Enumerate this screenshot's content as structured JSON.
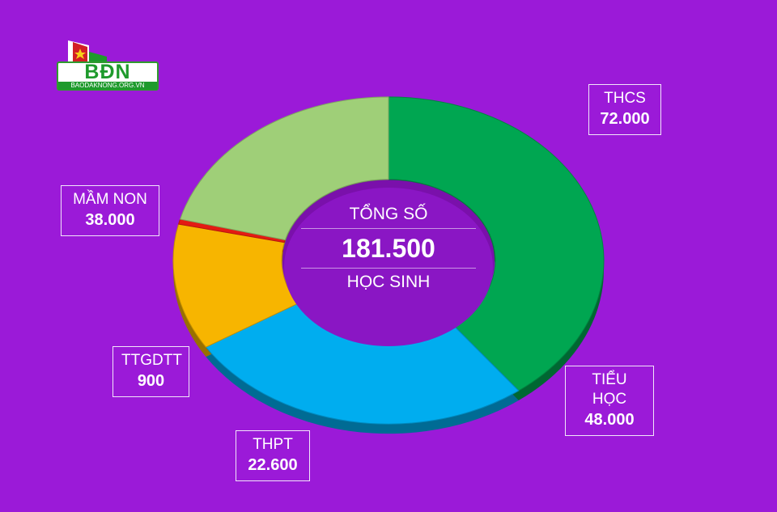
{
  "logo": {
    "text": "BĐN",
    "url": "BAODAKNONG.ORG.VN",
    "colors": {
      "green": "#1e9a2c",
      "red": "#d21f26"
    }
  },
  "center": {
    "title": "TỔNG SỐ",
    "total": "181.500",
    "subtitle": "HỌC SINH"
  },
  "background_color": "#9b1ad8",
  "chart_data": {
    "type": "pie",
    "style": "donut",
    "total": 181500,
    "slices": [
      {
        "name": "THCS",
        "value": 72000,
        "display": "72.000",
        "color": "#00a651"
      },
      {
        "name": "TIỂU HỌC",
        "value": 48000,
        "display": "48.000",
        "color": "#00adef"
      },
      {
        "name": "THPT",
        "value": 22600,
        "display": "22.600",
        "color": "#f7b500"
      },
      {
        "name": "TTGDTT",
        "value": 900,
        "display": "900",
        "color": "#e41b13"
      },
      {
        "name": "MẦM NON",
        "value": 38000,
        "display": "38.000",
        "color": "#9fcf78"
      }
    ]
  }
}
